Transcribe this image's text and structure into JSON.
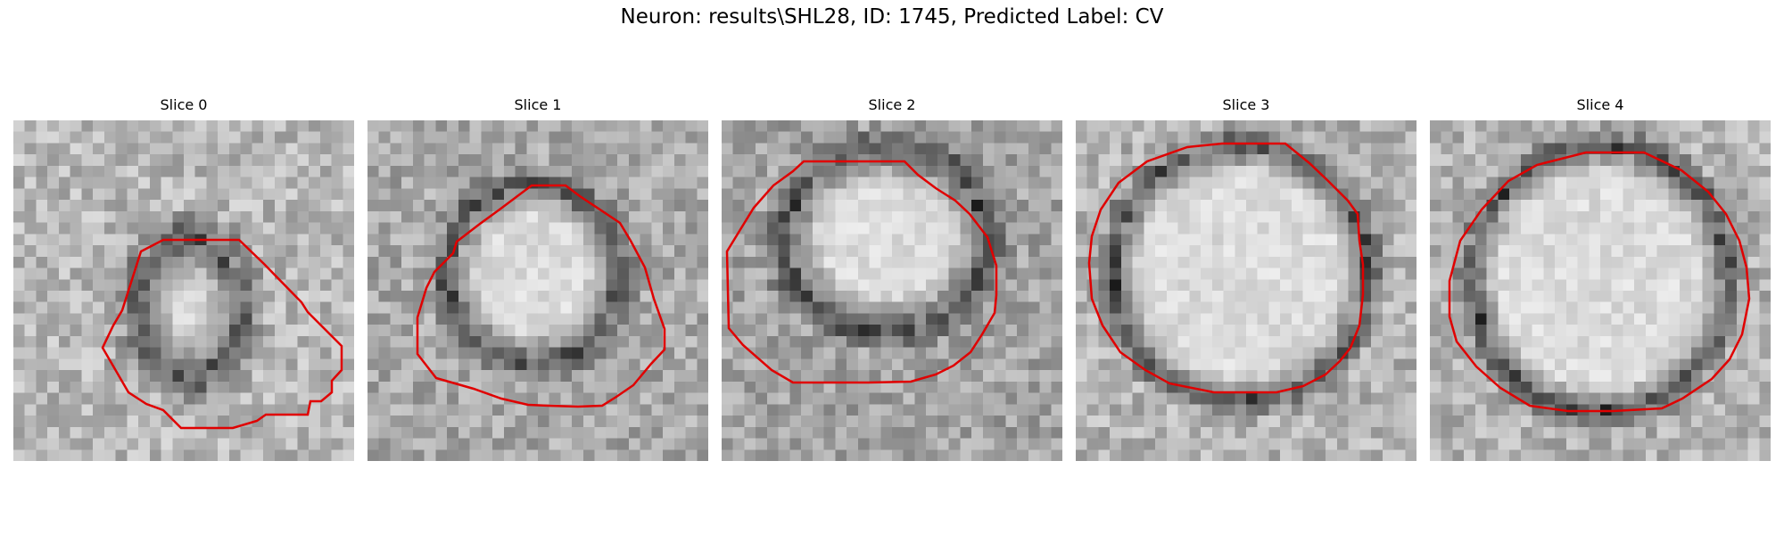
{
  "figure": {
    "title": "Neuron: results\\SHL28, ID: 1745, Predicted Label: CV",
    "contour_color": "#e00000"
  },
  "panels": [
    {
      "label": "Slice 0"
    },
    {
      "label": "Slice 1"
    },
    {
      "label": "Slice 2"
    },
    {
      "label": "Slice 3"
    },
    {
      "label": "Slice 4"
    }
  ]
}
